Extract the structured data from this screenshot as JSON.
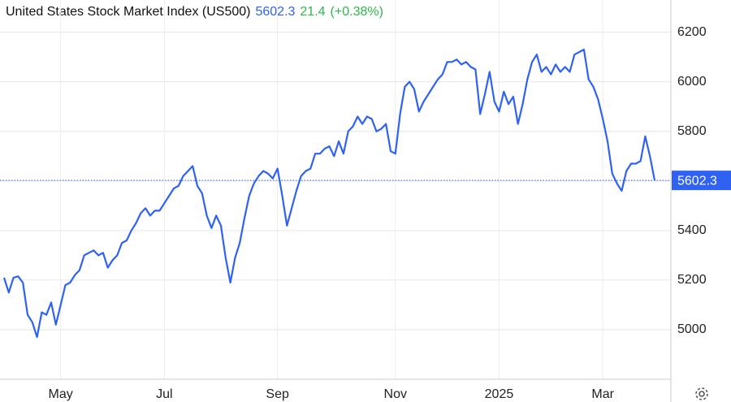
{
  "chart_data": {
    "type": "line",
    "title": "United States Stock Market Index (US500)",
    "last_value": 5602.3,
    "change": "21.4",
    "change_pct": "(+0.38%)",
    "color": "#2f62f2",
    "change_color": "#2db84b",
    "grid": true,
    "ylim": [
      4800,
      6330
    ],
    "yticks": [
      5000,
      5200,
      5400,
      5600,
      5800,
      6000,
      6200
    ],
    "categories": [
      null,
      null,
      null,
      null,
      null,
      null,
      null,
      null,
      null,
      null,
      null,
      null,
      "May",
      null,
      null,
      null,
      null,
      null,
      null,
      null,
      null,
      null,
      null,
      null,
      null,
      null,
      null,
      null,
      null,
      null,
      null,
      null,
      null,
      null,
      "Jul",
      null,
      null,
      null,
      null,
      null,
      null,
      null,
      null,
      null,
      null,
      null,
      null,
      null,
      null,
      null,
      null,
      null,
      null,
      null,
      null,
      null,
      null,
      null,
      "Sep",
      null,
      null,
      null,
      null,
      null,
      null,
      null,
      null,
      null,
      null,
      null,
      null,
      null,
      null,
      null,
      null,
      null,
      null,
      null,
      null,
      null,
      null,
      null,
      null,
      "Nov",
      null,
      null,
      null,
      null,
      null,
      null,
      null,
      null,
      null,
      null,
      null,
      null,
      null,
      null,
      null,
      null,
      null,
      null,
      null,
      null,
      null,
      "2025",
      null,
      null,
      null,
      null,
      null,
      null,
      null,
      null,
      null,
      null,
      null,
      null,
      null,
      null,
      null,
      null,
      null,
      null,
      null,
      null,
      null,
      "Mar",
      null,
      null,
      null,
      null,
      null,
      null,
      null,
      null,
      null,
      null,
      null
    ],
    "values": [
      5210,
      5150,
      5210,
      5215,
      5190,
      5060,
      5030,
      4970,
      5070,
      5060,
      5110,
      5020,
      5100,
      5180,
      5190,
      5220,
      5240,
      5300,
      5310,
      5320,
      5300,
      5310,
      5250,
      5280,
      5300,
      5350,
      5360,
      5400,
      5430,
      5470,
      5490,
      5460,
      5480,
      5480,
      5510,
      5540,
      5570,
      5580,
      5620,
      5640,
      5660,
      5580,
      5550,
      5460,
      5410,
      5460,
      5420,
      5290,
      5190,
      5290,
      5350,
      5450,
      5540,
      5590,
      5620,
      5640,
      5630,
      5610,
      5650,
      5540,
      5420,
      5490,
      5560,
      5620,
      5640,
      5650,
      5710,
      5710,
      5730,
      5740,
      5700,
      5760,
      5710,
      5800,
      5820,
      5860,
      5830,
      5860,
      5850,
      5800,
      5810,
      5830,
      5720,
      5710,
      5870,
      5980,
      6000,
      5970,
      5880,
      5920,
      5950,
      5980,
      6010,
      6030,
      6080,
      6080,
      6090,
      6070,
      6080,
      6060,
      6050,
      5870,
      5950,
      6040,
      5920,
      5880,
      5960,
      5910,
      5940,
      5830,
      5910,
      6010,
      6080,
      6110,
      6040,
      6060,
      6030,
      6070,
      6040,
      6060,
      6040,
      6110,
      6120,
      6130,
      6010,
      5980,
      5930,
      5850,
      5760,
      5630,
      5590,
      5560,
      5640,
      5670,
      5670,
      5680,
      5780,
      5700,
      5602.3
    ]
  }
}
